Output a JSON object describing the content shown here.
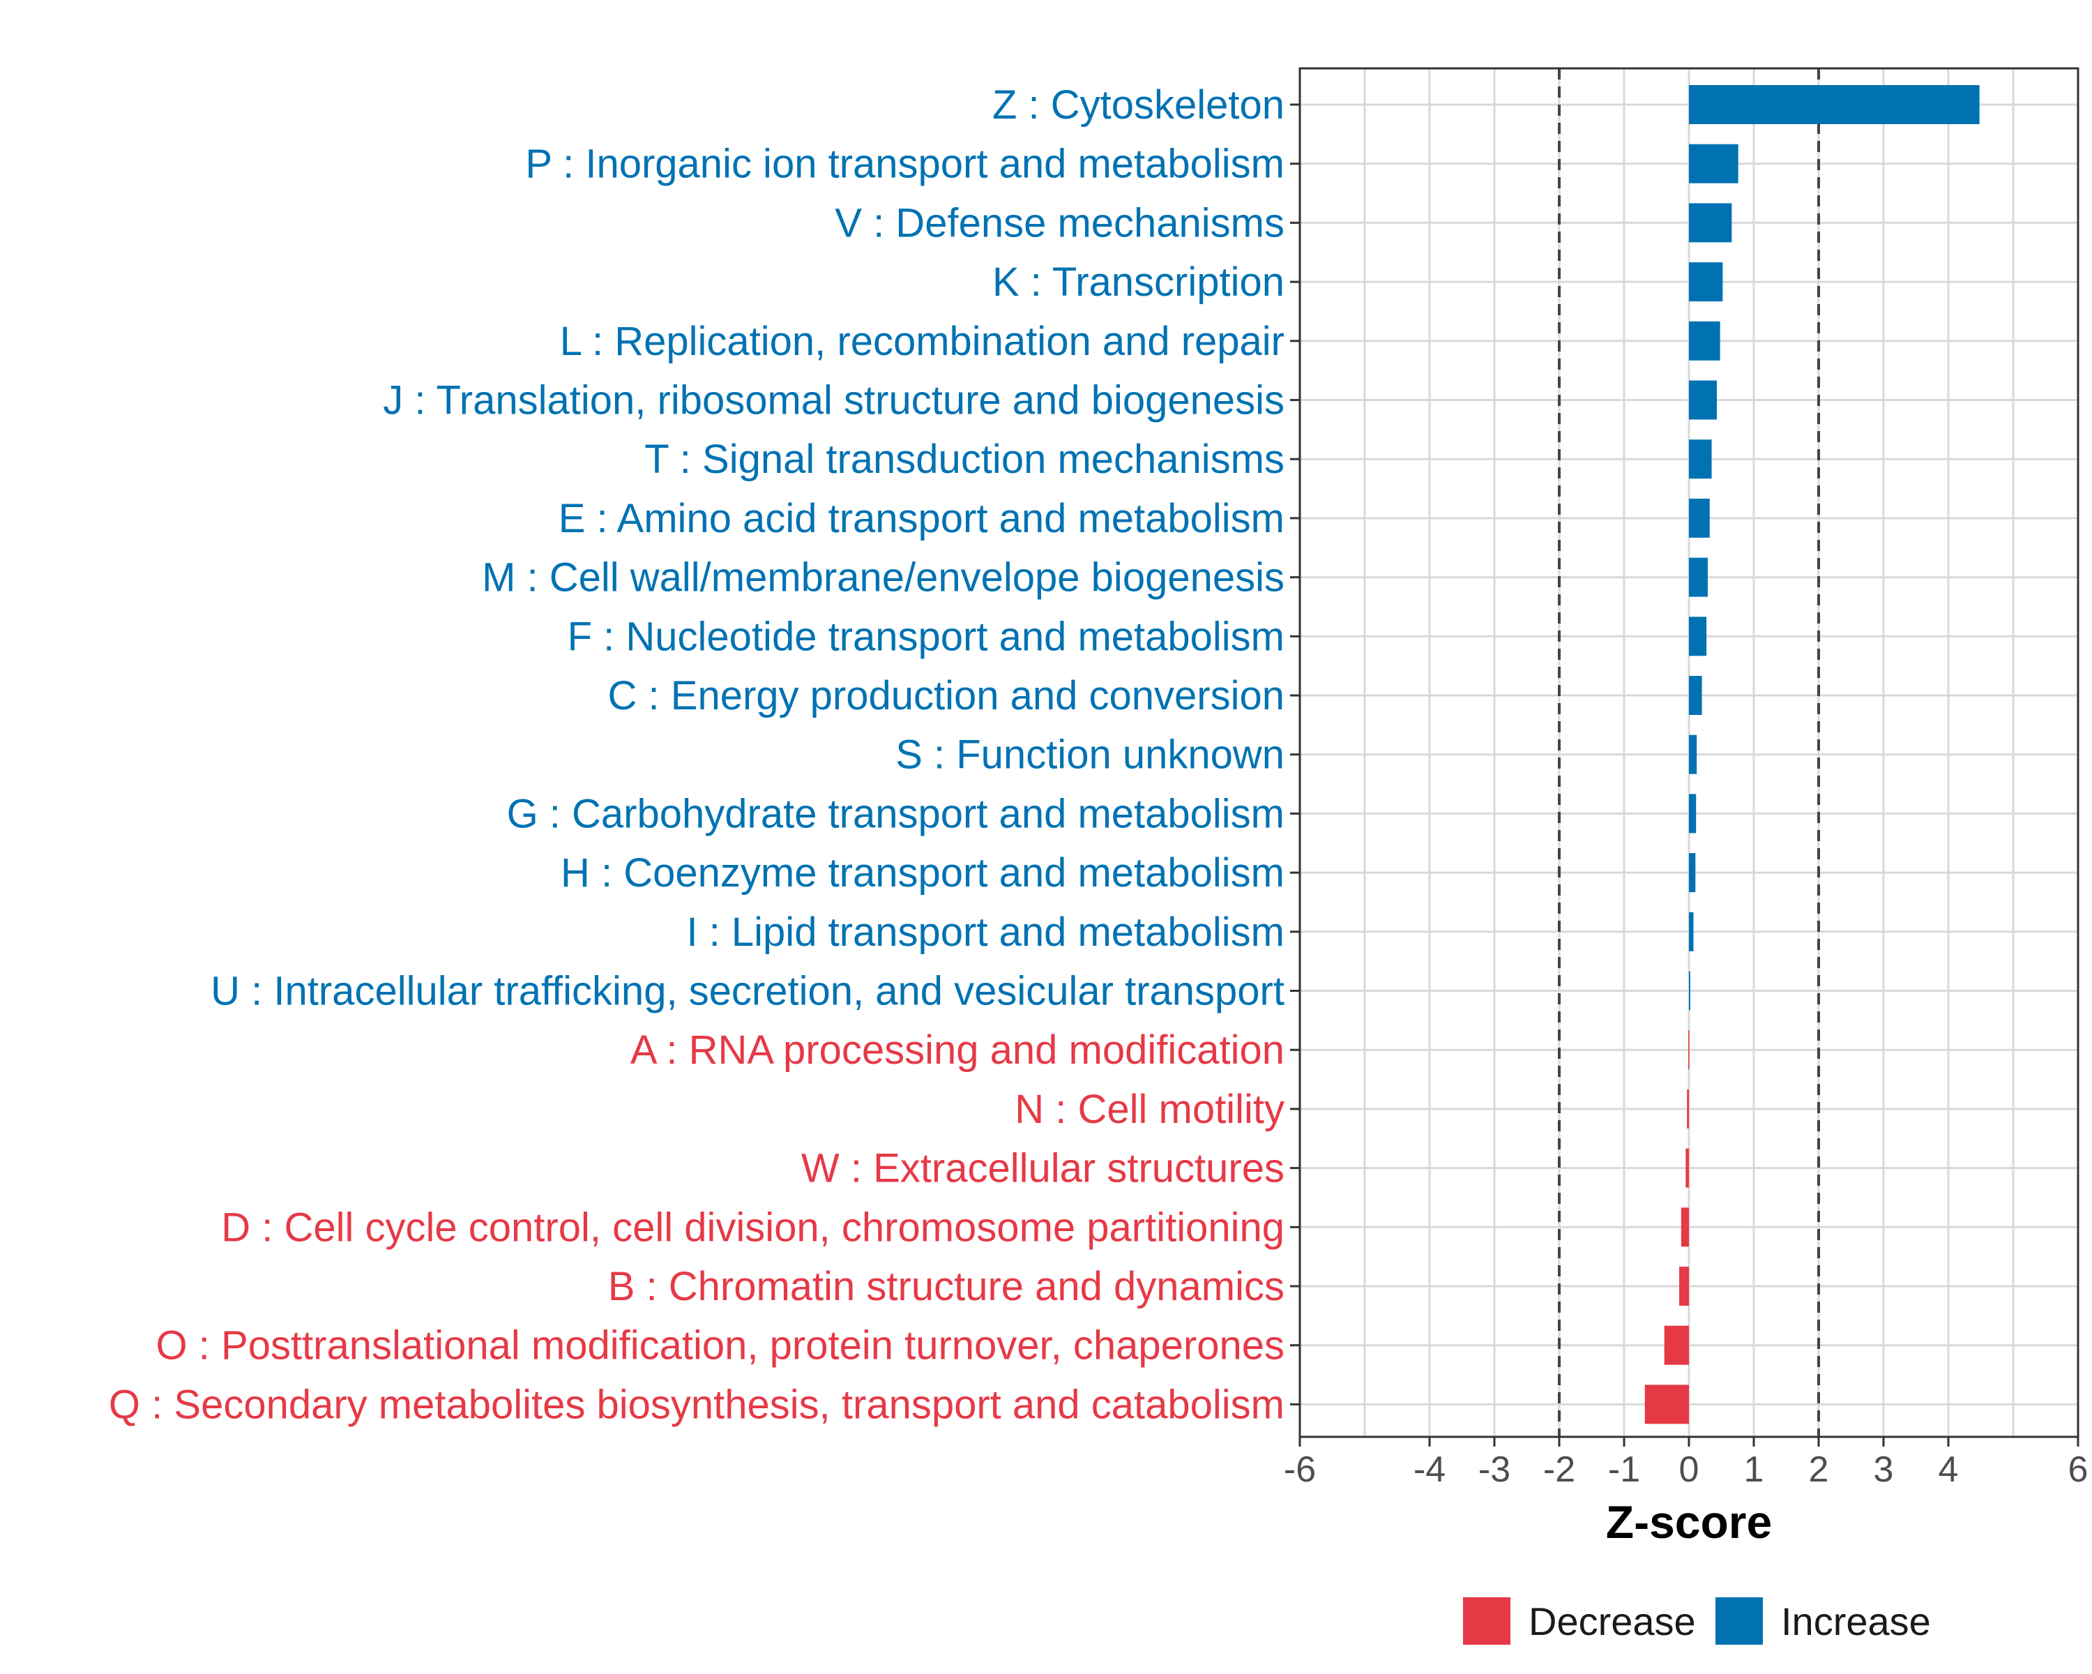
{
  "chart_data": {
    "type": "bar",
    "orientation": "horizontal",
    "xlabel": "Z-score",
    "xlim": [
      -6,
      6
    ],
    "xticks": [
      -6,
      -4,
      -3,
      -2,
      -1,
      0,
      1,
      2,
      3,
      4,
      6
    ],
    "threshold_lines": [
      -2,
      2
    ],
    "grid": true,
    "legend_position": "bottom",
    "colors": {
      "Decrease": "#e63946",
      "Increase": "#0072b2"
    },
    "legend": [
      {
        "name": "Decrease",
        "color": "#e63946"
      },
      {
        "name": "Increase",
        "color": "#0072b2"
      }
    ],
    "categories": [
      "Z : Cytoskeleton",
      "P : Inorganic ion transport and metabolism",
      "V : Defense mechanisms",
      "K : Transcription",
      "L : Replication, recombination and repair",
      "J : Translation, ribosomal structure and biogenesis",
      "T : Signal transduction mechanisms",
      "E : Amino acid transport and metabolism",
      "M : Cell wall/membrane/envelope biogenesis",
      "F : Nucleotide transport and metabolism",
      "C : Energy production and conversion",
      "S : Function unknown",
      "G : Carbohydrate transport and metabolism",
      "H : Coenzyme transport and metabolism",
      "I : Lipid transport and metabolism",
      "U : Intracellular trafficking, secretion, and vesicular transport",
      "A : RNA processing and modification",
      "N : Cell motility",
      "W : Extracellular structures",
      "D : Cell cycle control, cell division, chromosome partitioning",
      "B : Chromatin structure and dynamics",
      "O : Posttranslational modification, protein turnover, chaperones",
      "Q : Secondary metabolites biosynthesis, transport and catabolism"
    ],
    "values": [
      4.48,
      0.76,
      0.66,
      0.52,
      0.48,
      0.43,
      0.35,
      0.32,
      0.29,
      0.27,
      0.2,
      0.12,
      0.11,
      0.1,
      0.07,
      0.02,
      -0.01,
      -0.03,
      -0.05,
      -0.12,
      -0.15,
      -0.38,
      -0.68
    ],
    "groups": [
      "Increase",
      "Increase",
      "Increase",
      "Increase",
      "Increase",
      "Increase",
      "Increase",
      "Increase",
      "Increase",
      "Increase",
      "Increase",
      "Increase",
      "Increase",
      "Increase",
      "Increase",
      "Increase",
      "Decrease",
      "Decrease",
      "Decrease",
      "Decrease",
      "Decrease",
      "Decrease",
      "Decrease"
    ]
  }
}
